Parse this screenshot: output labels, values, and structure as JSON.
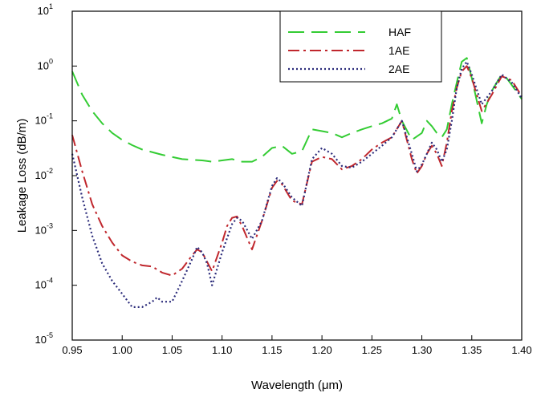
{
  "chart_data": {
    "type": "line",
    "title": "",
    "xlabel": "Wavelength (μm)",
    "ylabel": "Leakage Loss (dB/m)",
    "xlim": [
      0.95,
      1.4
    ],
    "ylim": [
      1e-05,
      10
    ],
    "yscale": "log",
    "grid": false,
    "legend_position": "top-right",
    "x_ticks": [
      "0.95",
      "1.00",
      "1.05",
      "1.10",
      "1.15",
      "1.20",
      "1.25",
      "1.30",
      "1.35",
      "1.40"
    ],
    "y_ticks": [
      {
        "base": "10",
        "exp": "-5"
      },
      {
        "base": "10",
        "exp": "-4"
      },
      {
        "base": "10",
        "exp": "-3"
      },
      {
        "base": "10",
        "exp": "-2"
      },
      {
        "base": "10",
        "exp": "-1"
      },
      {
        "base": "10",
        "exp": "0"
      },
      {
        "base": "10",
        "exp": "1"
      }
    ],
    "series": [
      {
        "name": "HAF",
        "color": "#33cc33",
        "style": "dashed",
        "x": [
          0.95,
          0.96,
          0.97,
          0.98,
          0.99,
          1.0,
          1.01,
          1.02,
          1.04,
          1.06,
          1.08,
          1.09,
          1.11,
          1.12,
          1.13,
          1.14,
          1.15,
          1.16,
          1.17,
          1.18,
          1.19,
          1.2,
          1.21,
          1.22,
          1.23,
          1.24,
          1.25,
          1.26,
          1.27,
          1.275,
          1.28,
          1.29,
          1.3,
          1.305,
          1.31,
          1.315,
          1.32,
          1.325,
          1.33,
          1.335,
          1.34,
          1.345,
          1.35,
          1.36,
          1.365,
          1.37,
          1.375,
          1.38,
          1.385,
          1.39,
          1.4
        ],
        "y": [
          0.8,
          0.3,
          0.15,
          0.09,
          0.06,
          0.045,
          0.036,
          0.03,
          0.024,
          0.02,
          0.019,
          0.018,
          0.02,
          0.018,
          0.018,
          0.022,
          0.032,
          0.035,
          0.025,
          0.028,
          0.07,
          0.065,
          0.06,
          0.05,
          0.06,
          0.07,
          0.08,
          0.09,
          0.11,
          0.2,
          0.1,
          0.045,
          0.06,
          0.1,
          0.08,
          0.06,
          0.05,
          0.07,
          0.2,
          0.5,
          1.2,
          1.4,
          0.6,
          0.09,
          0.2,
          0.35,
          0.5,
          0.7,
          0.6,
          0.45,
          0.25
        ]
      },
      {
        "name": "1AE",
        "color": "#c0272d",
        "style": "dashdot",
        "x": [
          0.95,
          0.96,
          0.97,
          0.98,
          0.99,
          1.0,
          1.01,
          1.02,
          1.03,
          1.04,
          1.05,
          1.06,
          1.07,
          1.075,
          1.08,
          1.09,
          1.1,
          1.105,
          1.11,
          1.115,
          1.12,
          1.13,
          1.14,
          1.15,
          1.155,
          1.16,
          1.17,
          1.18,
          1.19,
          1.2,
          1.21,
          1.22,
          1.23,
          1.24,
          1.25,
          1.26,
          1.27,
          1.28,
          1.29,
          1.295,
          1.3,
          1.305,
          1.31,
          1.315,
          1.32,
          1.325,
          1.33,
          1.335,
          1.34,
          1.345,
          1.35,
          1.36,
          1.37,
          1.38,
          1.39,
          1.4
        ],
        "y": [
          0.055,
          0.012,
          0.003,
          0.0012,
          0.0006,
          0.00035,
          0.00027,
          0.00023,
          0.00022,
          0.00017,
          0.00015,
          0.0002,
          0.00035,
          0.00045,
          0.0004,
          0.00018,
          0.0006,
          0.0012,
          0.0017,
          0.0018,
          0.0012,
          0.00045,
          0.0015,
          0.006,
          0.008,
          0.007,
          0.0035,
          0.003,
          0.018,
          0.022,
          0.02,
          0.013,
          0.015,
          0.02,
          0.03,
          0.04,
          0.05,
          0.1,
          0.02,
          0.011,
          0.015,
          0.025,
          0.035,
          0.025,
          0.015,
          0.04,
          0.15,
          0.4,
          0.8,
          1.0,
          0.6,
          0.15,
          0.3,
          0.65,
          0.55,
          0.28
        ]
      },
      {
        "name": "2AE",
        "color": "#2b2b7a",
        "style": "dotted",
        "x": [
          0.95,
          0.96,
          0.97,
          0.98,
          0.99,
          1.0,
          1.01,
          1.02,
          1.03,
          1.035,
          1.04,
          1.05,
          1.06,
          1.07,
          1.075,
          1.08,
          1.085,
          1.09,
          1.1,
          1.11,
          1.115,
          1.12,
          1.13,
          1.14,
          1.15,
          1.155,
          1.16,
          1.17,
          1.18,
          1.19,
          1.2,
          1.21,
          1.22,
          1.23,
          1.24,
          1.25,
          1.26,
          1.27,
          1.28,
          1.29,
          1.295,
          1.3,
          1.305,
          1.31,
          1.315,
          1.32,
          1.325,
          1.33,
          1.335,
          1.34,
          1.345,
          1.35,
          1.36,
          1.37,
          1.38,
          1.39,
          1.4
        ],
        "y": [
          0.025,
          0.004,
          0.0008,
          0.00025,
          0.00012,
          7e-05,
          4e-05,
          4e-05,
          5e-05,
          6e-05,
          5e-05,
          5e-05,
          0.00012,
          0.0003,
          0.0005,
          0.0004,
          0.00025,
          0.0001,
          0.0004,
          0.0013,
          0.0017,
          0.0015,
          0.0007,
          0.0015,
          0.0065,
          0.009,
          0.0075,
          0.004,
          0.0028,
          0.02,
          0.032,
          0.025,
          0.015,
          0.014,
          0.018,
          0.025,
          0.035,
          0.05,
          0.1,
          0.025,
          0.012,
          0.016,
          0.025,
          0.04,
          0.03,
          0.018,
          0.03,
          0.1,
          0.4,
          0.9,
          1.2,
          0.7,
          0.2,
          0.35,
          0.7,
          0.5,
          0.26
        ]
      }
    ]
  }
}
